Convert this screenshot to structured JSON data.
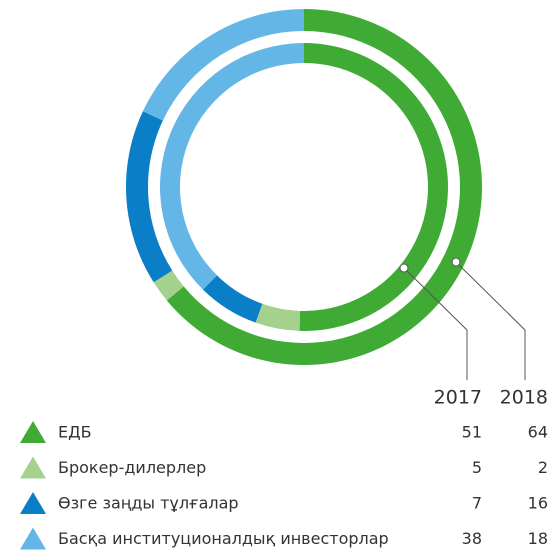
{
  "chart_data": {
    "type": "donut",
    "categories": [
      "ЕДБ",
      "Брокер-дилерлер",
      "Өзге заңды тұлғалар",
      "Басқа институционалдық инвесторлар"
    ],
    "colors": [
      "#3fab35",
      "#a5d18e",
      "#0a7fc8",
      "#64b6e6"
    ],
    "series": [
      {
        "name": "2017",
        "values": [
          51,
          5,
          7,
          38
        ]
      },
      {
        "name": "2018",
        "values": [
          64,
          2,
          16,
          18
        ]
      }
    ]
  }
}
